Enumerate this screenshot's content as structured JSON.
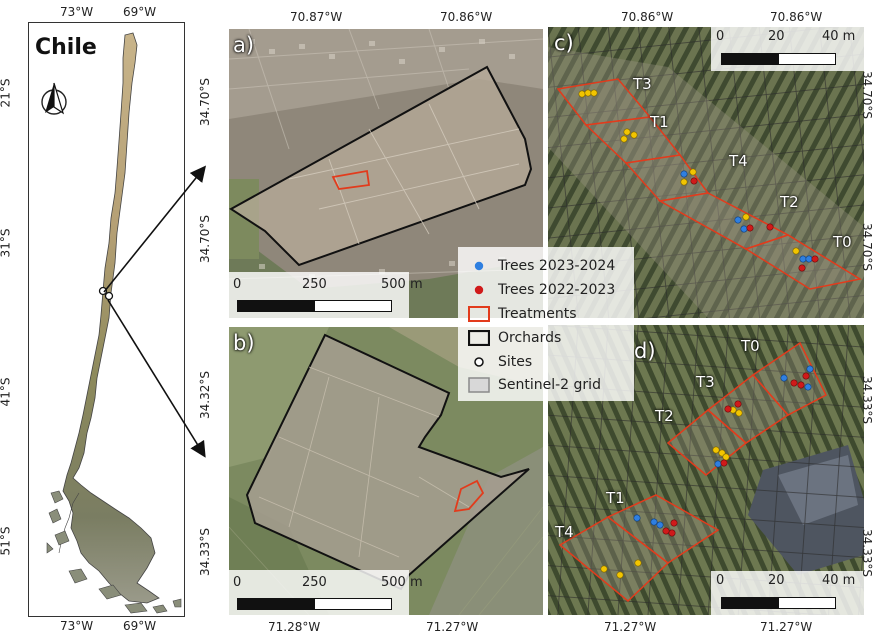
{
  "chile_panel": {
    "title": "Chile",
    "top_ticks": [
      "73°W",
      "69°W"
    ],
    "bottom_ticks": [
      "73°W",
      "69°W"
    ],
    "left_ticks": [
      "21°S",
      "31°S",
      "41°S",
      "51°S"
    ],
    "north_arrow_icon": "north-arrow-icon"
  },
  "panel_a": {
    "label": "a)",
    "top_ticks": [
      "70.87°W",
      "70.86°W"
    ],
    "left_ticks": [
      "34.70°S",
      "34.70°S"
    ],
    "scale": {
      "zero": "0",
      "mid": "250",
      "end": "500 m"
    }
  },
  "panel_b": {
    "label": "b)",
    "bottom_ticks": [
      "71.28°W",
      "71.27°W"
    ],
    "left_ticks": [
      "34.32°S",
      "34.33°S"
    ],
    "scale": {
      "zero": "0",
      "mid": "250",
      "end": "500 m"
    }
  },
  "panel_c": {
    "label": "c)",
    "top_ticks": [
      "70.86°W",
      "70.86°W"
    ],
    "right_ticks": [
      "34.70°S",
      "34.70°S"
    ],
    "scale": {
      "zero": "0",
      "mid": "20",
      "end": "40 m"
    },
    "treatments": [
      "T3",
      "T1",
      "T4",
      "T2",
      "T0"
    ]
  },
  "panel_d": {
    "label": "d)",
    "bottom_ticks": [
      "71.27°W",
      "71.27°W"
    ],
    "right_ticks": [
      "34.33°S",
      "34.33°S"
    ],
    "scale": {
      "zero": "0",
      "mid": "20",
      "end": "40 m"
    },
    "treatments": [
      "T0",
      "T3",
      "T2",
      "T1",
      "T4"
    ]
  },
  "legend": {
    "items": [
      {
        "label": "Trees 2023-2024",
        "icon": "blue-dot-icon"
      },
      {
        "label": "Trees 2022-2023",
        "icon": "red-dot-icon"
      },
      {
        "label": "Treatments",
        "icon": "red-outline-rect-icon"
      },
      {
        "label": "Orchards",
        "icon": "black-outline-rect-icon"
      },
      {
        "label": "Sites",
        "icon": "white-circle-icon"
      },
      {
        "label": "Sentinel-2 grid",
        "icon": "grey-grid-cell-icon"
      }
    ]
  },
  "colors": {
    "trees_2023_2024": "#2f7fe0",
    "trees_2022_2023": "#d01a1a",
    "trees_yellow": "#f2c500",
    "treatments": "#e23b1c",
    "orchards": "#111111",
    "grid": "#8a8a8a",
    "land": "#b4a37a",
    "sea": "#ffffff"
  }
}
